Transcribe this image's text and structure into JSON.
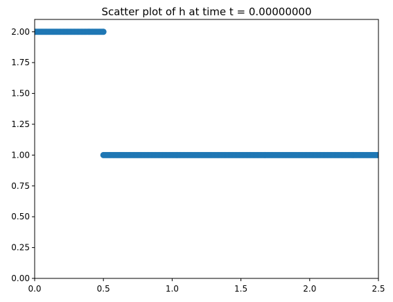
{
  "chart_data": {
    "type": "scatter",
    "title": "Scatter plot of h at time t =     0.00000000",
    "xlabel": "",
    "ylabel": "",
    "xlim": [
      0.0,
      2.5
    ],
    "ylim": [
      0.0,
      2.1
    ],
    "x_ticks": [
      "0.0",
      "0.5",
      "1.0",
      "1.5",
      "2.0",
      "2.5"
    ],
    "x_tick_values": [
      0.0,
      0.5,
      1.0,
      1.5,
      2.0,
      2.5
    ],
    "y_ticks": [
      "0.00",
      "0.25",
      "0.50",
      "0.75",
      "1.00",
      "1.25",
      "1.50",
      "1.75",
      "2.00"
    ],
    "y_tick_values": [
      0.0,
      0.25,
      0.5,
      0.75,
      1.0,
      1.25,
      1.5,
      1.75,
      2.0
    ],
    "grid": false,
    "marker_color": "#1f77b4",
    "series": [
      {
        "x_start": 0.0,
        "x_end": 0.5,
        "x_step": 0.01,
        "y": 2.0
      },
      {
        "x_start": 0.5,
        "x_end": 2.5,
        "x_step": 0.01,
        "y": 1.0
      }
    ]
  }
}
